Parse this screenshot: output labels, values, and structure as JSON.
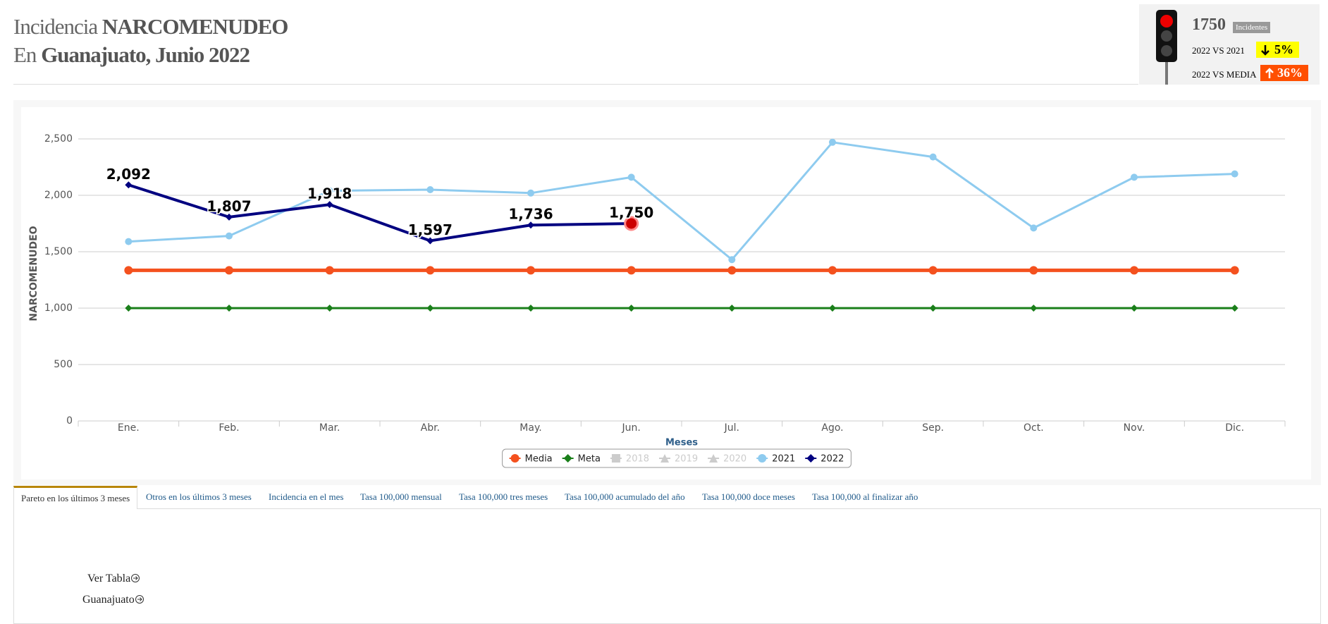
{
  "header": {
    "line1_plain": "Incidencia",
    "line1_bold": "NARCOMENUDEO",
    "line2_plain": "En",
    "line2_bold": "Guanajuato, Junio 2022"
  },
  "indicator": {
    "total": "1750",
    "unit": "Incidentes",
    "vs_prev_label": "2022 VS 2021",
    "vs_prev_value": "5%",
    "vs_mean_label": "2022 VS MEDIA",
    "vs_mean_value": "36%"
  },
  "chart_data": {
    "type": "line",
    "y_label": "NARCOMENUDEO",
    "x_label": "Meses",
    "categories": [
      "Ene.",
      "Feb.",
      "Mar.",
      "Abr.",
      "May.",
      "Jun.",
      "Jul.",
      "Ago.",
      "Sep.",
      "Oct.",
      "Nov.",
      "Dic."
    ],
    "ylim": [
      0,
      2600
    ],
    "yticks": [
      0,
      500,
      {
        "value": 1000,
        "label": "1,000"
      },
      {
        "value": 1500,
        "label": "1,500"
      },
      {
        "value": 2000,
        "label": "2,000"
      },
      {
        "value": 2500,
        "label": "2,500"
      }
    ],
    "grid": true,
    "legend": "bottom",
    "series": [
      {
        "name": "Media",
        "color": "#f4511e",
        "marker": "circle",
        "visible": true,
        "values": [
          1335,
          1335,
          1335,
          1335,
          1335,
          1335,
          1335,
          1335,
          1335,
          1335,
          1335,
          1335
        ]
      },
      {
        "name": "Meta",
        "color": "#1a7f1a",
        "marker": "diamond",
        "visible": true,
        "values": [
          1000,
          1000,
          1000,
          1000,
          1000,
          1000,
          1000,
          1000,
          1000,
          1000,
          1000,
          1000
        ]
      },
      {
        "name": "2018",
        "color": "#cccccc",
        "marker": "square",
        "visible": false,
        "values": [
          null,
          null,
          null,
          null,
          null,
          null,
          null,
          null,
          null,
          null,
          null,
          null
        ]
      },
      {
        "name": "2019",
        "color": "#cccccc",
        "marker": "triangle",
        "visible": false,
        "values": [
          null,
          null,
          null,
          null,
          null,
          null,
          null,
          null,
          null,
          null,
          null,
          null
        ]
      },
      {
        "name": "2020",
        "color": "#cccccc",
        "marker": "triangle",
        "visible": false,
        "values": [
          null,
          null,
          null,
          null,
          null,
          null,
          null,
          null,
          null,
          null,
          null,
          null
        ]
      },
      {
        "name": "2021",
        "color": "#8ecbef",
        "marker": "circle",
        "visible": true,
        "values": [
          1590,
          1640,
          2040,
          2050,
          2020,
          2160,
          1430,
          2470,
          2340,
          1710,
          2160,
          2190
        ]
      },
      {
        "name": "2022",
        "color": "#000080",
        "marker": "diamond",
        "visible": true,
        "values": [
          2092,
          1807,
          1918,
          1597,
          1736,
          1750,
          null,
          null,
          null,
          null,
          null,
          null
        ],
        "value_labels": [
          "2,092",
          "1,807",
          "1,918",
          "1,597",
          "1,736",
          "1,750",
          null,
          null,
          null,
          null,
          null,
          null
        ]
      }
    ]
  },
  "tabs": [
    "Pareto en los últimos 3 meses",
    "Otros en los últimos 3 meses",
    "Incidencia en el mes",
    "Tasa 100,000 mensual",
    "Tasa 100,000 tres meses",
    "Tasa 100,000 acumulado del año",
    "Tasa 100,000 doce meses",
    "Tasa 100,000 al finalizar año"
  ],
  "links": [
    "Ver Tabla",
    "Guanajuato"
  ]
}
